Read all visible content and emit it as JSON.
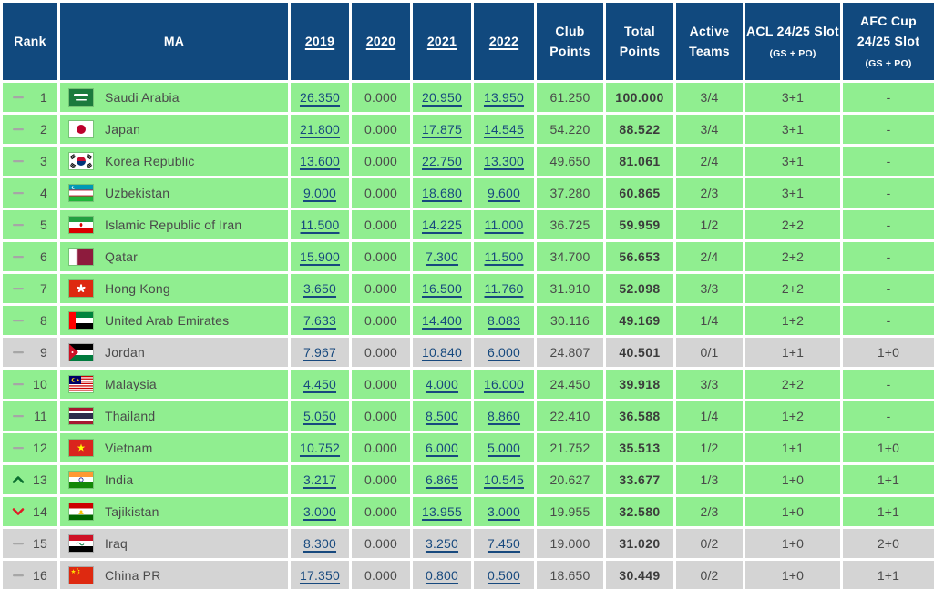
{
  "table": {
    "columns": [
      {
        "key": "rank",
        "label": "Rank",
        "sortable": false
      },
      {
        "key": "ma",
        "label": "MA",
        "sortable": false
      },
      {
        "key": "y2019",
        "label": "2019",
        "sortable": true
      },
      {
        "key": "y2020",
        "label": "2020",
        "sortable": true
      },
      {
        "key": "y2021",
        "label": "2021",
        "sortable": true
      },
      {
        "key": "y2022",
        "label": "2022",
        "sortable": true
      },
      {
        "key": "club_points",
        "label": "Club Points",
        "sortable": false
      },
      {
        "key": "total_points",
        "label": "Total Points",
        "sortable": false
      },
      {
        "key": "active_teams",
        "label": "Active Teams",
        "sortable": false
      },
      {
        "key": "acl_slot",
        "label": "ACL 24/25 Slot",
        "sub_label": "(GS + PO)",
        "sortable": false
      },
      {
        "key": "afc_cup_slot",
        "label": "AFC Cup 24/25 Slot",
        "sub_label": "(GS + PO)",
        "sortable": false
      }
    ],
    "rows": [
      {
        "movement": "same",
        "rank": "1",
        "flag": "saudi-arabia",
        "country": "Saudi Arabia",
        "y2019": "26.350",
        "y2020": "0.000",
        "y2021": "20.950",
        "y2022": "13.950",
        "club_points": "61.250",
        "total_points": "100.000",
        "active_teams": "3/4",
        "acl_slot": "3+1",
        "afc_cup_slot": "-",
        "row_style": "green"
      },
      {
        "movement": "same",
        "rank": "2",
        "flag": "japan",
        "country": "Japan",
        "y2019": "21.800",
        "y2020": "0.000",
        "y2021": "17.875",
        "y2022": "14.545",
        "club_points": "54.220",
        "total_points": "88.522",
        "active_teams": "3/4",
        "acl_slot": "3+1",
        "afc_cup_slot": "-",
        "row_style": "green"
      },
      {
        "movement": "same",
        "rank": "3",
        "flag": "korea-republic",
        "country": "Korea Republic",
        "y2019": "13.600",
        "y2020": "0.000",
        "y2021": "22.750",
        "y2022": "13.300",
        "club_points": "49.650",
        "total_points": "81.061",
        "active_teams": "2/4",
        "acl_slot": "3+1",
        "afc_cup_slot": "-",
        "row_style": "green"
      },
      {
        "movement": "same",
        "rank": "4",
        "flag": "uzbekistan",
        "country": "Uzbekistan",
        "y2019": "9.000",
        "y2020": "0.000",
        "y2021": "18.680",
        "y2022": "9.600",
        "club_points": "37.280",
        "total_points": "60.865",
        "active_teams": "2/3",
        "acl_slot": "3+1",
        "afc_cup_slot": "-",
        "row_style": "green"
      },
      {
        "movement": "same",
        "rank": "5",
        "flag": "iran",
        "country": "Islamic Republic of Iran",
        "y2019": "11.500",
        "y2020": "0.000",
        "y2021": "14.225",
        "y2022": "11.000",
        "club_points": "36.725",
        "total_points": "59.959",
        "active_teams": "1/2",
        "acl_slot": "2+2",
        "afc_cup_slot": "-",
        "row_style": "green"
      },
      {
        "movement": "same",
        "rank": "6",
        "flag": "qatar",
        "country": "Qatar",
        "y2019": "15.900",
        "y2020": "0.000",
        "y2021": "7.300",
        "y2022": "11.500",
        "club_points": "34.700",
        "total_points": "56.653",
        "active_teams": "2/4",
        "acl_slot": "2+2",
        "afc_cup_slot": "-",
        "row_style": "green"
      },
      {
        "movement": "same",
        "rank": "7",
        "flag": "hong-kong",
        "country": "Hong Kong",
        "y2019": "3.650",
        "y2020": "0.000",
        "y2021": "16.500",
        "y2022": "11.760",
        "club_points": "31.910",
        "total_points": "52.098",
        "active_teams": "3/3",
        "acl_slot": "2+2",
        "afc_cup_slot": "-",
        "row_style": "green"
      },
      {
        "movement": "same",
        "rank": "8",
        "flag": "united-arab-emirates",
        "country": "United Arab Emirates",
        "y2019": "7.633",
        "y2020": "0.000",
        "y2021": "14.400",
        "y2022": "8.083",
        "club_points": "30.116",
        "total_points": "49.169",
        "active_teams": "1/4",
        "acl_slot": "1+2",
        "afc_cup_slot": "-",
        "row_style": "green"
      },
      {
        "movement": "same",
        "rank": "9",
        "flag": "jordan",
        "country": "Jordan",
        "y2019": "7.967",
        "y2020": "0.000",
        "y2021": "10.840",
        "y2022": "6.000",
        "club_points": "24.807",
        "total_points": "40.501",
        "active_teams": "0/1",
        "acl_slot": "1+1",
        "afc_cup_slot": "1+0",
        "row_style": "gray"
      },
      {
        "movement": "same",
        "rank": "10",
        "flag": "malaysia",
        "country": "Malaysia",
        "y2019": "4.450",
        "y2020": "0.000",
        "y2021": "4.000",
        "y2022": "16.000",
        "club_points": "24.450",
        "total_points": "39.918",
        "active_teams": "3/3",
        "acl_slot": "2+2",
        "afc_cup_slot": "-",
        "row_style": "green"
      },
      {
        "movement": "same",
        "rank": "11",
        "flag": "thailand",
        "country": "Thailand",
        "y2019": "5.050",
        "y2020": "0.000",
        "y2021": "8.500",
        "y2022": "8.860",
        "club_points": "22.410",
        "total_points": "36.588",
        "active_teams": "1/4",
        "acl_slot": "1+2",
        "afc_cup_slot": "-",
        "row_style": "green"
      },
      {
        "movement": "same",
        "rank": "12",
        "flag": "vietnam",
        "country": "Vietnam",
        "y2019": "10.752",
        "y2020": "0.000",
        "y2021": "6.000",
        "y2022": "5.000",
        "club_points": "21.752",
        "total_points": "35.513",
        "active_teams": "1/2",
        "acl_slot": "1+1",
        "afc_cup_slot": "1+0",
        "row_style": "green"
      },
      {
        "movement": "up",
        "rank": "13",
        "flag": "india",
        "country": "India",
        "y2019": "3.217",
        "y2020": "0.000",
        "y2021": "6.865",
        "y2022": "10.545",
        "club_points": "20.627",
        "total_points": "33.677",
        "active_teams": "1/3",
        "acl_slot": "1+0",
        "afc_cup_slot": "1+1",
        "row_style": "green"
      },
      {
        "movement": "down",
        "rank": "14",
        "flag": "tajikistan",
        "country": "Tajikistan",
        "y2019": "3.000",
        "y2020": "0.000",
        "y2021": "13.955",
        "y2022": "3.000",
        "club_points": "19.955",
        "total_points": "32.580",
        "active_teams": "2/3",
        "acl_slot": "1+0",
        "afc_cup_slot": "1+1",
        "row_style": "green"
      },
      {
        "movement": "same",
        "rank": "15",
        "flag": "iraq",
        "country": "Iraq",
        "y2019": "8.300",
        "y2020": "0.000",
        "y2021": "3.250",
        "y2022": "7.450",
        "club_points": "19.000",
        "total_points": "31.020",
        "active_teams": "0/2",
        "acl_slot": "1+0",
        "afc_cup_slot": "2+0",
        "row_style": "gray"
      },
      {
        "movement": "same",
        "rank": "16",
        "flag": "china-pr",
        "country": "China PR",
        "y2019": "17.350",
        "y2020": "0.000",
        "y2021": "0.800",
        "y2022": "0.500",
        "club_points": "18.650",
        "total_points": "30.449",
        "active_teams": "0/2",
        "acl_slot": "1+0",
        "afc_cup_slot": "1+1",
        "row_style": "gray"
      }
    ]
  },
  "colors": {
    "header_bg": "#11497E",
    "header_text": "#FFFFFF",
    "row_green": "#90EE90",
    "row_gray": "#D4D4D4",
    "link": "#17497E",
    "body_text": "#4A4A4A",
    "total_points_text": "#3C3C3C",
    "movement_up": "#0A6E2F",
    "movement_down": "#E01B24",
    "movement_same": "#A6A6A6"
  }
}
